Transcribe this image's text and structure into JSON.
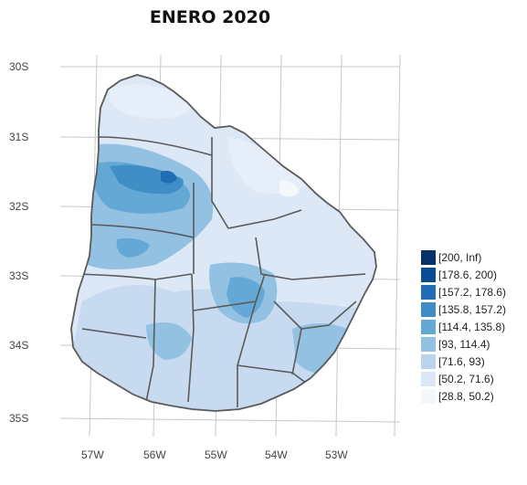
{
  "title": "ENERO 2020",
  "map": {
    "type": "choropleth",
    "lat_labels": [
      "30S",
      "31S",
      "32S",
      "33S",
      "34S",
      "35S"
    ],
    "lon_labels": [
      "57W",
      "56W",
      "55W",
      "54W",
      "53W"
    ],
    "country_fill": "#dce8f5",
    "border_color": "#5a5a5a",
    "grid_color": "#c8c8c8"
  },
  "legend": {
    "items": [
      {
        "label": "[200, Inf)",
        "color": "#08306b"
      },
      {
        "label": "[178.6, 200)",
        "color": "#0a4d97"
      },
      {
        "label": "[157.2, 178.6)",
        "color": "#1f6eb5"
      },
      {
        "label": "[135.8, 157.2)",
        "color": "#3f8fc6"
      },
      {
        "label": "[114.4, 135.8)",
        "color": "#64a9d5"
      },
      {
        "label": "[93, 114.4)",
        "color": "#92c1e2"
      },
      {
        "label": "[71.6, 93)",
        "color": "#bad4ee"
      },
      {
        "label": "[50.2, 71.6)",
        "color": "#dbe7f5"
      },
      {
        "label": "[28.8, 50.2)",
        "color": "#f4f8fd"
      }
    ]
  }
}
